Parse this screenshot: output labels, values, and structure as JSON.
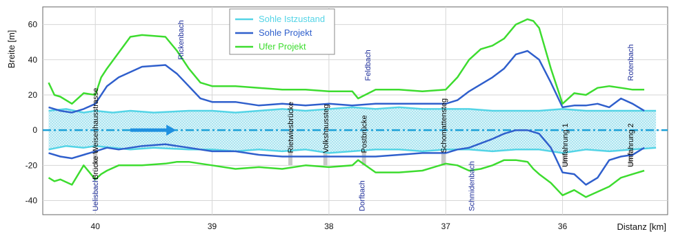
{
  "chart_data": {
    "type": "line",
    "ylabel": "Breite [m]",
    "xlabel": "Distanz [km]",
    "xlim": [
      40.45,
      35.1
    ],
    "ylim": [
      -48,
      70
    ],
    "xticks": [
      {
        "value": 40,
        "label": "40"
      },
      {
        "value": 39,
        "label": "39"
      },
      {
        "value": 38,
        "label": "38"
      },
      {
        "value": 37,
        "label": "37"
      },
      {
        "value": 36,
        "label": "36"
      }
    ],
    "yticks": [
      {
        "value": 60,
        "label": "60"
      },
      {
        "value": 40,
        "label": "40"
      },
      {
        "value": 20,
        "label": "20"
      },
      {
        "value": 0,
        "label": "0"
      },
      {
        "value": -20,
        "label": "-20"
      },
      {
        "value": -40,
        "label": "-40"
      }
    ],
    "grid": true,
    "legend": {
      "position": "top-center",
      "entries": [
        {
          "name": "Sohle Istzustand",
          "color": "#53d4e6"
        },
        {
          "name": "Sohle Projekt",
          "color": "#2f5fcc"
        },
        {
          "name": "Ufer Projekt",
          "color": "#3ddc2f"
        }
      ]
    },
    "series": [
      {
        "name": "Sohle Istzustand",
        "color": "#53d4e6",
        "x": [
          40.4,
          40.25,
          40.1,
          40.0,
          39.85,
          39.7,
          39.5,
          39.2,
          39.0,
          38.8,
          38.6,
          38.4,
          38.2,
          38.0,
          37.8,
          37.6,
          37.4,
          37.2,
          37.0,
          36.8,
          36.6,
          36.4,
          36.2,
          36.0,
          35.8,
          35.6,
          35.4,
          35.2
        ],
        "top": [
          11,
          12,
          10,
          11,
          10,
          11,
          10,
          11,
          11,
          10,
          11,
          12,
          11,
          12,
          13,
          12,
          13,
          12,
          12,
          12,
          11,
          11,
          11,
          12,
          11,
          11,
          11,
          11
        ],
        "bottom": [
          -11,
          -9,
          -10,
          -9,
          -10,
          -11,
          -10,
          -11,
          -11,
          -12,
          -11,
          -12,
          -11,
          -13,
          -12,
          -11,
          -11,
          -12,
          -11,
          -11,
          -12,
          -11,
          -11,
          -13,
          -11,
          -12,
          -11,
          -10
        ]
      },
      {
        "name": "Sohle Projekt",
        "color": "#2f5fcc",
        "x": [
          40.4,
          40.3,
          40.2,
          40.1,
          40.0,
          39.9,
          39.8,
          39.6,
          39.4,
          39.3,
          39.2,
          39.1,
          39.0,
          38.8,
          38.6,
          38.4,
          38.2,
          38.0,
          37.8,
          37.6,
          37.4,
          37.2,
          37.0,
          36.9,
          36.8,
          36.6,
          36.5,
          36.4,
          36.3,
          36.2,
          36.1,
          36.0,
          35.9,
          35.8,
          35.7,
          35.6,
          35.5,
          35.4,
          35.3
        ],
        "top": [
          13,
          11,
          10,
          12,
          15,
          25,
          30,
          36,
          37,
          32,
          25,
          18,
          16,
          16,
          14,
          15,
          14,
          15,
          14,
          15,
          15,
          15,
          15,
          17,
          22,
          30,
          35,
          43,
          45,
          40,
          27,
          13,
          14,
          14,
          15,
          13,
          18,
          15,
          11
        ],
        "bottom": [
          -13,
          -15,
          -16,
          -14,
          -12,
          -10,
          -11,
          -9,
          -8,
          -9,
          -10,
          -11,
          -12,
          -12,
          -14,
          -15,
          -15,
          -15,
          -15,
          -15,
          -14,
          -13,
          -13,
          -11,
          -10,
          -5,
          -2,
          0,
          0,
          -2,
          -10,
          -24,
          -25,
          -31,
          -27,
          -17,
          -15,
          -14,
          -10
        ]
      },
      {
        "name": "Ufer Projekt",
        "color": "#3ddc2f",
        "x": [
          40.4,
          40.35,
          40.3,
          40.2,
          40.1,
          40.0,
          39.95,
          39.9,
          39.8,
          39.7,
          39.6,
          39.4,
          39.3,
          39.2,
          39.1,
          39.0,
          38.8,
          38.6,
          38.4,
          38.2,
          38.0,
          37.8,
          37.75,
          37.6,
          37.4,
          37.2,
          37.0,
          36.9,
          36.8,
          36.7,
          36.6,
          36.5,
          36.4,
          36.3,
          36.25,
          36.2,
          36.1,
          36.0,
          35.9,
          35.8,
          35.7,
          35.6,
          35.5,
          35.4,
          35.3
        ],
        "top": [
          27,
          20,
          19,
          15,
          21,
          20,
          30,
          35,
          44,
          53,
          54,
          53,
          45,
          35,
          27,
          25,
          25,
          24,
          23,
          23,
          22,
          22,
          18,
          23,
          23,
          22,
          23,
          30,
          40,
          46,
          48,
          52,
          60,
          63,
          62,
          58,
          35,
          15,
          21,
          20,
          24,
          25,
          24,
          23,
          23
        ],
        "bottom": [
          -27,
          -29,
          -28,
          -31,
          -20,
          -28,
          -25,
          -23,
          -20,
          -20,
          -20,
          -19,
          -18,
          -18,
          -19,
          -20,
          -22,
          -21,
          -22,
          -20,
          -21,
          -20,
          -17,
          -24,
          -24,
          -23,
          -19,
          -20,
          -23,
          -22,
          -20,
          -17,
          -17,
          -18,
          -22,
          -25,
          -30,
          -37,
          -34,
          -38,
          -35,
          -32,
          -27,
          -25,
          -23
        ]
      }
    ],
    "centerline": {
      "value": 0,
      "color": "#1aa0d8"
    },
    "flow_direction": "from 40 toward 36",
    "annotations": [
      {
        "text": "Uelisbach",
        "x": 40.0,
        "kind": "tributary"
      },
      {
        "text": "Brücke Weisenhausstrasse",
        "x": 40.0,
        "kind": "bridge"
      },
      {
        "text": "Rickenbach",
        "x": 39.27,
        "kind": "tributary"
      },
      {
        "text": "Rietwiesbrücke",
        "x": 38.33,
        "kind": "bridge"
      },
      {
        "text": "Volkshaussteg",
        "x": 38.03,
        "kind": "bridge"
      },
      {
        "text": "Feldbach",
        "x": 37.67,
        "kind": "tributary"
      },
      {
        "text": "Postbrücke",
        "x": 37.7,
        "kind": "bridge"
      },
      {
        "text": "Dorfbach",
        "x": 37.72,
        "kind": "tributary"
      },
      {
        "text": "Schomattensteg",
        "x": 37.02,
        "kind": "bridge"
      },
      {
        "text": "Schmidenbach",
        "x": 36.78,
        "kind": "tributary"
      },
      {
        "text": "Umfahrung 1",
        "x": 35.98,
        "kind": "bridge"
      },
      {
        "text": "Rotenbach",
        "x": 35.42,
        "kind": "tributary"
      },
      {
        "text": "Umfahrung 2",
        "x": 35.42,
        "kind": "bridge"
      }
    ]
  }
}
